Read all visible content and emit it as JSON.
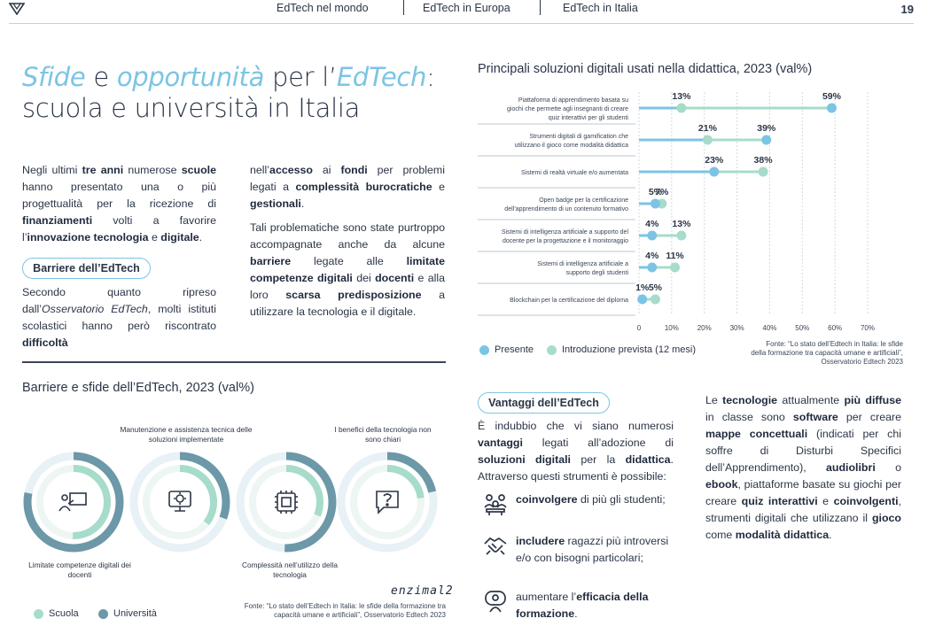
{
  "header": {
    "nav": [
      "EdTech nel mondo",
      "EdTech in Europa",
      "EdTech in Italia"
    ],
    "page_number": "19"
  },
  "title": {
    "w1": "Sfide",
    "w2": " e ",
    "w3": "opportunità",
    "w4": " per l’",
    "w5": "EdTech",
    "w6": ":",
    "line2": "scuola e università in Italia"
  },
  "intro": {
    "p1": [
      {
        "t": "Negli ultimi ",
        "b": false
      },
      {
        "t": "tre anni",
        "b": true
      },
      {
        "t": " numerose ",
        "b": false
      },
      {
        "t": "scuole",
        "b": true
      },
      {
        "t": " hanno presentato una o più progettualità per la ricezione di ",
        "b": false
      },
      {
        "t": "finanziamenti",
        "b": true
      },
      {
        "t": " volti a favorire l’",
        "b": false
      },
      {
        "t": "innovazione tecnologia",
        "b": true
      },
      {
        "t": " e ",
        "b": false
      },
      {
        "t": "digitale",
        "b": true
      },
      {
        "t": ".",
        "b": false
      }
    ],
    "barrier_pill": "Barriere dell’EdTech",
    "p2": [
      {
        "t": "Secondo quanto ripreso dall’",
        "b": false
      },
      {
        "t": "Osservatorio EdTech",
        "i": true
      },
      {
        "t": ", molti istituti scolastici hanno però riscontrato ",
        "b": false
      },
      {
        "t": "difficoltà",
        "b": true
      }
    ],
    "p3": [
      {
        "t": "nell’",
        "b": false
      },
      {
        "t": "accesso",
        "b": true
      },
      {
        "t": " ai ",
        "b": false
      },
      {
        "t": "fondi",
        "b": true
      },
      {
        "t": " per problemi legati a ",
        "b": false
      },
      {
        "t": "complessità burocratiche",
        "b": true
      },
      {
        "t": " e ",
        "b": false
      },
      {
        "t": "gestionali",
        "b": true
      },
      {
        "t": ".",
        "b": false
      }
    ],
    "p4": [
      {
        "t": "Tali problematiche sono state purtroppo accompagnate anche da alcune ",
        "b": false
      },
      {
        "t": "barriere",
        "b": true
      },
      {
        "t": " legate alle ",
        "b": false
      },
      {
        "t": "limitate competenze digitali",
        "b": true
      },
      {
        "t": " dei ",
        "b": false
      },
      {
        "t": "docenti",
        "b": true
      },
      {
        "t": " e alla loro ",
        "b": false
      },
      {
        "t": "scarsa predisposizione",
        "b": true
      },
      {
        "t": " a utilizzare la tecnologia e il digitale.",
        "b": false
      }
    ]
  },
  "barriers_chart": {
    "title": "Barriere e sfide dell’EdTech, 2023 (val%)",
    "labels_top": [
      "Manutenzione e assistenza tecnica\ndelle soluzioni implementate",
      "I benefici della tecnologia\nnon sono chiari"
    ],
    "labels_bottom": [
      "Limitate competenze\ndigitali dei docenti",
      "Complessità nell’utilizzo\ndella tecnologia"
    ],
    "legend": [
      "Scuola",
      "Università"
    ],
    "colors": {
      "scuola": "#a6dcc9",
      "universita": "#6c98a8",
      "track": "#e8f1f5"
    },
    "icons": [
      "teacher-board-icon",
      "gear-monitor-icon",
      "cpu-chip-icon",
      "question-bubble-icon"
    ],
    "brand": "enzimal2",
    "source": "Fonte: “Lo stato dell’Edtech in Italia: le sfide della formazione tra\ncapacità umane e artificiali”, Osservatorio Edtech 2023"
  },
  "chart_data": {
    "type": "dot-plot",
    "title": "Principali soluzioni digitali usati nella didattica, 2023 (val%)",
    "categories": [
      "Piattaforma di apprendimento basata su\ngiochi che permette agli insegnanti di creare\nquiz interattivi per gli studenti",
      "Strumenti digitali di gamification che\nutilizzano il gioco come modalità didattica",
      "Sistemi di realtà virtuale e/o aumentata",
      "Open badge per la certificazione\ndell’apprendimento di un contenuto formativo",
      "Sistemi di intelligenza artificiale a supporto del\ndocente per la progettazione e il monitoraggio",
      "Sistemi di intelligenza artificiale a\nsupporto degli studenti",
      "Blockchain per la certificazione del diploma"
    ],
    "series": [
      {
        "name": "Presente",
        "color": "#7cc4e4",
        "values": [
          59,
          39,
          23,
          5,
          4,
          4,
          1
        ]
      },
      {
        "name": "Introduzione prevista (12 mesi)",
        "color": "#a6dcc9",
        "values": [
          13,
          21,
          38,
          7,
          13,
          11,
          5
        ]
      }
    ],
    "data_labels": [
      [
        "59%",
        "13%"
      ],
      [
        "39%",
        "21%"
      ],
      [
        "23%",
        "38%"
      ],
      [
        "5%",
        "7%"
      ],
      [
        "4%",
        "13%"
      ],
      [
        "4%",
        "11%"
      ],
      [
        "1%",
        "5%"
      ]
    ],
    "xlim": [
      0,
      70
    ],
    "xticks": [
      "0",
      "10%",
      "20%",
      "30%",
      "40%",
      "50%",
      "60%",
      "70%"
    ],
    "grid": true,
    "legend_position": "bottom-left",
    "source": "Fonte: “Lo stato dell’Edtech in Italia: le sfide\ndella formazione tra capacità umane e artificiali”,\nOsservatorio Edtech 2023"
  },
  "advantages": {
    "pill": "Vantaggi dell’EdTech",
    "intro": [
      {
        "t": "È indubbio che vi siano numerosi ",
        "b": false
      },
      {
        "t": "vantaggi",
        "b": true
      },
      {
        "t": " legati all’adozione di ",
        "b": false
      },
      {
        "t": "soluzioni digitali",
        "b": true
      },
      {
        "t": " per la ",
        "b": false
      },
      {
        "t": "didattica",
        "b": true
      },
      {
        "t": ". Attraverso questi strumenti è possibile:",
        "b": false
      }
    ],
    "bullets": [
      {
        "icon": "students-group-icon",
        "parts": [
          {
            "t": "coinvolgere",
            "b": true
          },
          {
            "t": " di più gli studenti;",
            "b": false
          }
        ]
      },
      {
        "icon": "handshake-icon",
        "parts": [
          {
            "t": "includere",
            "b": true
          },
          {
            "t": " ragazzi più introversi e/o con bisogni particolari;",
            "b": false
          }
        ]
      },
      {
        "icon": "training-screen-icon",
        "parts": [
          {
            "t": "aumentare l’",
            "b": false
          },
          {
            "t": "efficacia della formazione",
            "b": true
          },
          {
            "t": ".",
            "b": false
          }
        ]
      }
    ],
    "side": [
      {
        "t": "Le ",
        "b": false
      },
      {
        "t": "tecnologie",
        "b": true
      },
      {
        "t": " attualmente ",
        "b": false
      },
      {
        "t": "più diffuse",
        "b": true
      },
      {
        "t": " in classe sono ",
        "b": false
      },
      {
        "t": "software",
        "b": true
      },
      {
        "t": " per creare ",
        "b": false
      },
      {
        "t": "mappe concettuali",
        "b": true
      },
      {
        "t": " (indicati per chi soffre di Disturbi Specifici dell’Apprendimento), ",
        "b": false
      },
      {
        "t": "audiolibri",
        "b": true
      },
      {
        "t": " o ",
        "b": false
      },
      {
        "t": "ebook",
        "b": true
      },
      {
        "t": ", piattaforme basate su giochi per creare ",
        "b": false
      },
      {
        "t": "quiz interattivi",
        "b": true
      },
      {
        "t": " e ",
        "b": false
      },
      {
        "t": "coinvolgenti",
        "b": true
      },
      {
        "t": ", strumenti digitali che utilizzano il ",
        "b": false
      },
      {
        "t": "gioco",
        "b": true
      },
      {
        "t": " come ",
        "b": false
      },
      {
        "t": "modalità didattica",
        "b": true
      },
      {
        "t": ".",
        "b": false
      }
    ]
  }
}
